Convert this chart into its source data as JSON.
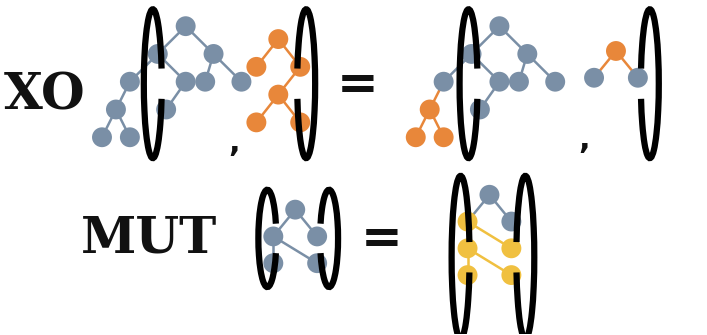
{
  "gray": "#7a8fa6",
  "orange": "#e8873a",
  "yellow": "#f0c040",
  "black": "#111111",
  "bg": "#ffffff",
  "xo_label": "XO",
  "mut_label": "MUT",
  "label_fontsize": 36,
  "node_r": 10,
  "lw_edge": 1.8,
  "lw_bracket": 4.5,
  "comma_fontsize": 24,
  "eq_fontsize": 36
}
